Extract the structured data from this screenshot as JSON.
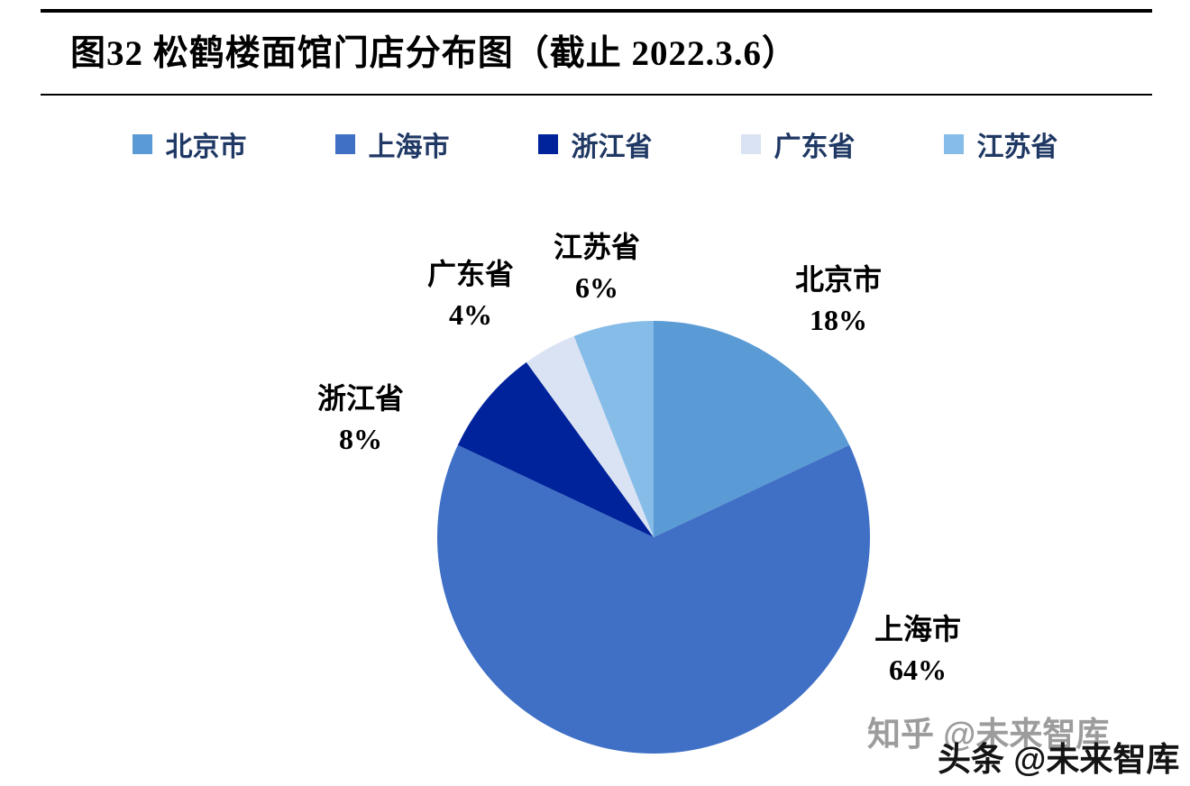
{
  "page": {
    "title": "图32  松鹤楼面馆门店分布图（截止 2022.3.6）"
  },
  "watermarks": {
    "zhihu": "知乎 @未来智库",
    "toutiao": "头条 @未来智库"
  },
  "chart_data": {
    "type": "pie",
    "title": "松鹤楼面馆门店分布图（截止 2022.3.6）",
    "as_of": "2022.3.6",
    "legend_position": "top",
    "start_angle_deg": 0,
    "direction": "clockwise",
    "unit": "%",
    "series": [
      {
        "label": "北京市",
        "value": 18,
        "color": "#5B9BD5"
      },
      {
        "label": "上海市",
        "value": 64,
        "color": "#3F70C6"
      },
      {
        "label": "浙江省",
        "value": 8,
        "color": "#00239B"
      },
      {
        "label": "广东省",
        "value": 4,
        "color": "#DAE3F3"
      },
      {
        "label": "江苏省",
        "value": 6,
        "color": "#86BCE8"
      }
    ]
  }
}
